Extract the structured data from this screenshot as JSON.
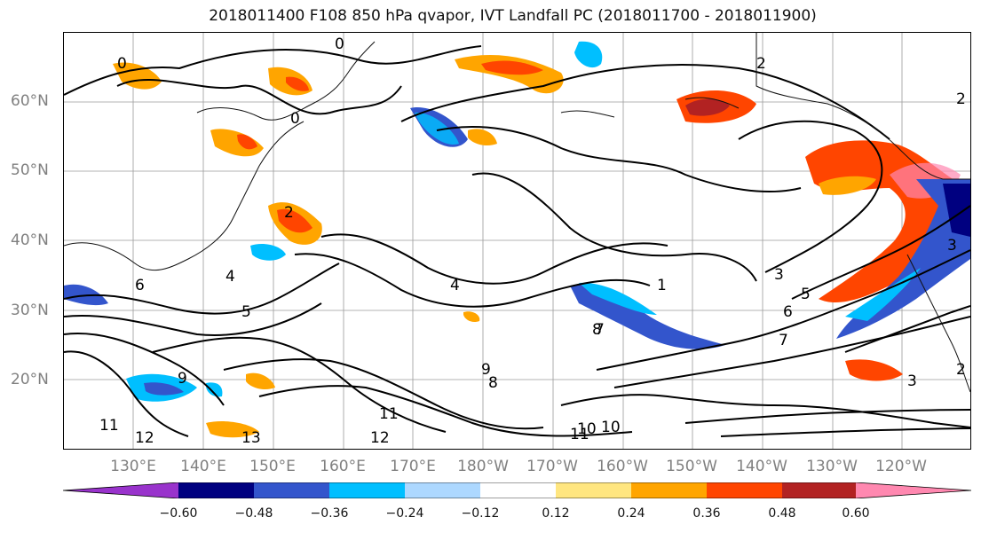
{
  "title": "2018011400 F108 850 hPa qvapor, IVT Landfall PC (2018011700 - 2018011900)",
  "map": {
    "lat_labels": [
      "60°N",
      "50°N",
      "40°N",
      "30°N",
      "20°N"
    ],
    "lon_labels": [
      "130°E",
      "140°E",
      "150°E",
      "160°E",
      "170°E",
      "180°W",
      "170°W",
      "160°W",
      "150°W",
      "140°W",
      "130°W",
      "120°W"
    ],
    "contour_labels": [
      "0",
      "0",
      "0",
      "2",
      "2",
      "2",
      "4",
      "1",
      "3",
      "3",
      "5",
      "6",
      "7",
      "8",
      "9",
      "10",
      "11",
      "12",
      "13",
      "11",
      "12",
      "11",
      "10",
      "9",
      "8",
      "7",
      "6",
      "5",
      "4",
      "3",
      "2"
    ]
  },
  "colorbar": {
    "ticks": [
      "−0.60",
      "−0.48",
      "−0.36",
      "−0.24",
      "−0.12",
      "0.12",
      "0.24",
      "0.36",
      "0.48",
      "0.60"
    ],
    "colors": [
      "#9933cc",
      "#000080",
      "#3355cc",
      "#00bfff",
      "#add8ff",
      "#ffffff",
      "#ffe680",
      "#ffa500",
      "#ff4500",
      "#b22222",
      "#ff88b0"
    ]
  }
}
